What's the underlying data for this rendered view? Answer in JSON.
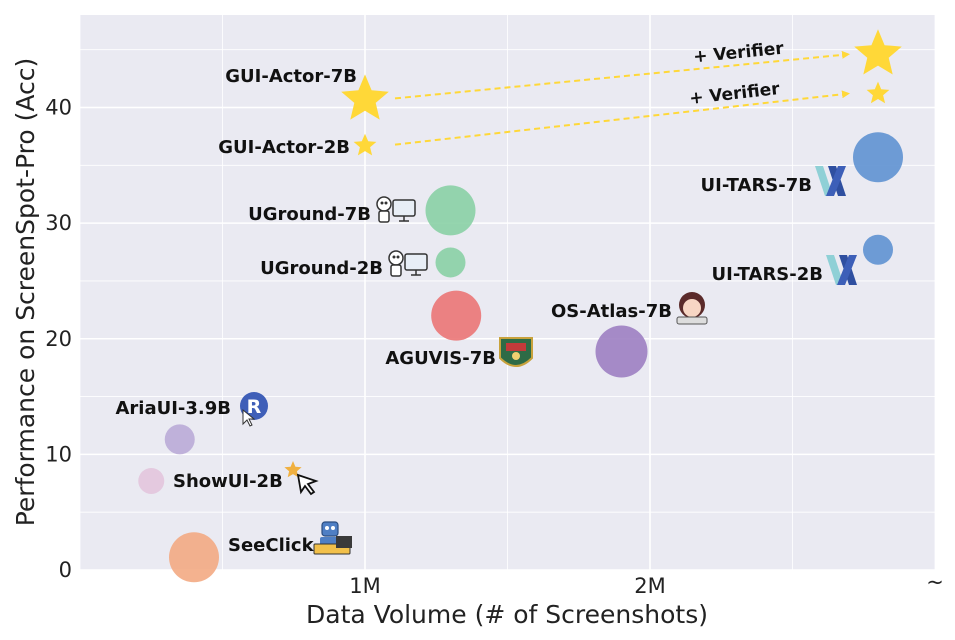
{
  "chart_data": {
    "type": "scatter",
    "title": "",
    "xlabel": "Data Volume (# of Screenshots)",
    "ylabel": "Performance on ScreenSpot-Pro (Acc)",
    "xlim": [
      0,
      3000000
    ],
    "ylim": [
      0,
      48
    ],
    "x_ticks": [
      {
        "value": 1000000,
        "label": "1M"
      },
      {
        "value": 2000000,
        "label": "2M"
      }
    ],
    "x_break_label": "~",
    "y_ticks": [
      {
        "value": 0,
        "label": "0"
      },
      {
        "value": 10,
        "label": "10"
      },
      {
        "value": 20,
        "label": "20"
      },
      {
        "value": 30,
        "label": "30"
      },
      {
        "value": 40,
        "label": "40"
      }
    ],
    "grid": true,
    "background_color": "#eaeaf2",
    "points": [
      {
        "label": "GUI-Actor-7B",
        "x": 1000000,
        "y": 40.7,
        "marker": "star",
        "color": "#ffd838",
        "icon": ""
      },
      {
        "label": "GUI-Actor-2B",
        "x": 1000000,
        "y": 36.7,
        "marker": "star-small",
        "color": "#ffd838",
        "icon": ""
      },
      {
        "label": "",
        "x": 2800000,
        "y": 44.6,
        "marker": "star",
        "color": "#ffd838",
        "icon": ""
      },
      {
        "label": "",
        "x": 2800000,
        "y": 41.2,
        "marker": "star-small",
        "color": "#ffd838",
        "icon": ""
      },
      {
        "label": "UI-TARS-7B",
        "x": 2800000,
        "y": 35.7,
        "marker": "circle",
        "size": "large",
        "color": "#5b8fd0",
        "icon": "ui-tars-logo-icon"
      },
      {
        "label": "UI-TARS-2B",
        "x": 2800000,
        "y": 27.7,
        "marker": "circle",
        "size": "small",
        "color": "#5b8fd0",
        "icon": "ui-tars-logo-icon"
      },
      {
        "label": "UGround-7B",
        "x": 1300000,
        "y": 31.1,
        "marker": "circle",
        "size": "large",
        "color": "#86cfa3",
        "icon": "robot-computer-icon"
      },
      {
        "label": "UGround-2B",
        "x": 1300000,
        "y": 26.6,
        "marker": "circle",
        "size": "small",
        "color": "#86cfa3",
        "icon": "robot-computer-icon"
      },
      {
        "label": "AGUVIS-7B",
        "x": 1320000,
        "y": 22.0,
        "marker": "circle",
        "size": "large",
        "color": "#eb7272",
        "icon": "university-crest-icon"
      },
      {
        "label": "OS-Atlas-7B",
        "x": 1900000,
        "y": 18.9,
        "marker": "circle",
        "size": "xlarge",
        "color": "#9b7cc0",
        "icon": "anime-avatar-icon"
      },
      {
        "label": "AriaUI-3.9B",
        "x": 350000,
        "y": 11.3,
        "marker": "circle",
        "size": "small",
        "color": "#b8a8d6",
        "icon": "aria-r-cursor-icon"
      },
      {
        "label": "ShowUI-2B",
        "x": 250000,
        "y": 7.7,
        "marker": "circle",
        "size": "xsmall",
        "color": "#e2c4dc",
        "icon": "sparkle-cursor-icon"
      },
      {
        "label": "SeeClick",
        "x": 400000,
        "y": 1.1,
        "marker": "circle",
        "size": "large",
        "color": "#f3a77f",
        "icon": "robot-laptop-icon"
      }
    ],
    "annotations": [
      {
        "text": "+ Verifier",
        "from": {
          "x": 1000000,
          "y": 40.7
        },
        "to": {
          "x": 2800000,
          "y": 44.6
        }
      },
      {
        "text": "+ Verifier",
        "from": {
          "x": 1000000,
          "y": 36.7
        },
        "to": {
          "x": 2800000,
          "y": 41.2
        }
      }
    ]
  }
}
